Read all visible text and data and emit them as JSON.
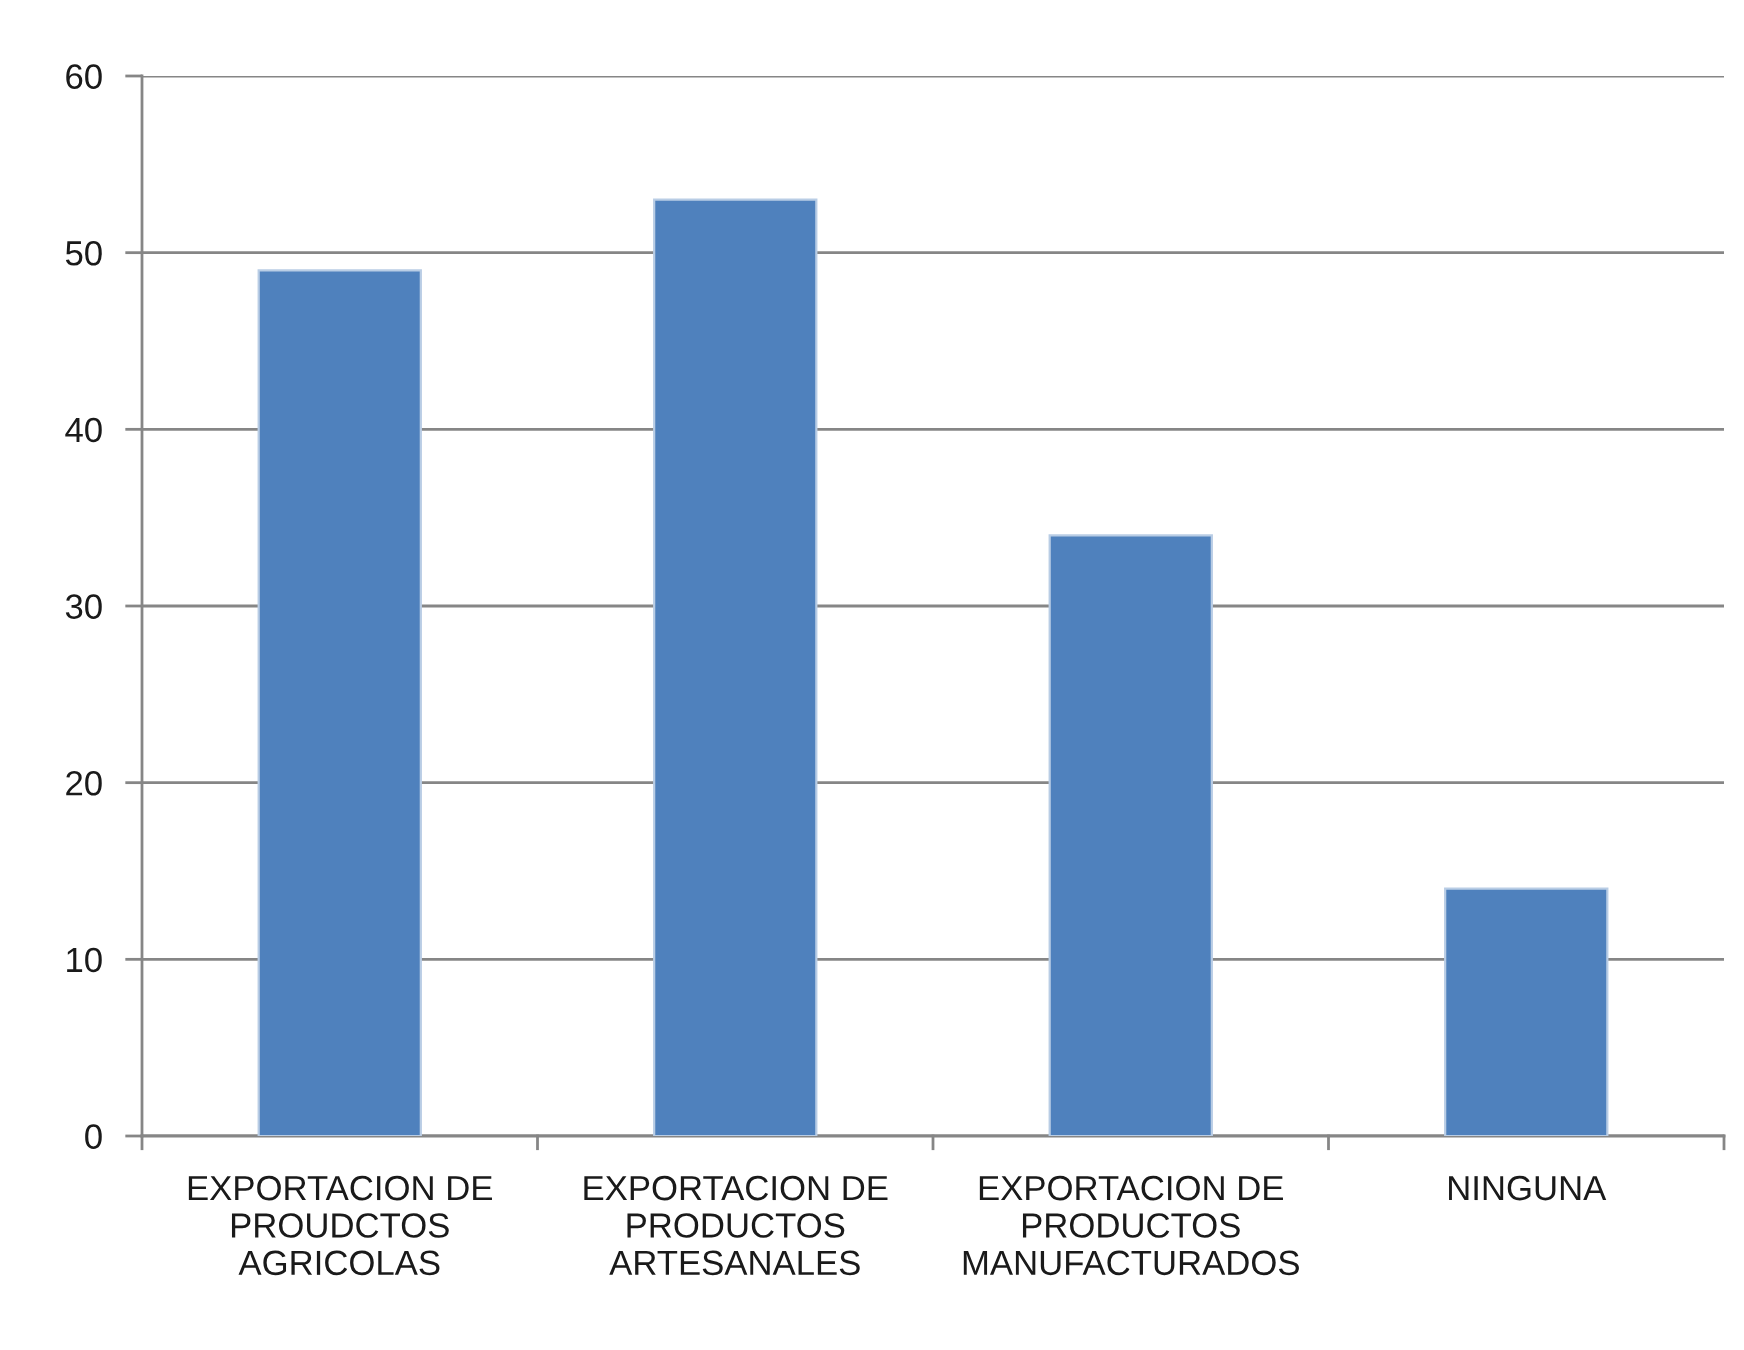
{
  "chart_data": {
    "type": "bar",
    "categories": [
      "EXPORTACION DE\nPROUDCTOS\nAGRICOLAS",
      "EXPORTACION DE\nPRODUCTOS\nARTESANALES",
      "EXPORTACION DE\nPRODUCTOS\nMANUFACTURADOS",
      "NINGUNA"
    ],
    "values": [
      49,
      53,
      34,
      14
    ],
    "color": "#4f81bd",
    "ylim": [
      0,
      60
    ],
    "yticks": [
      0,
      10,
      20,
      30,
      40,
      50,
      60
    ],
    "grid": "y",
    "legend": false
  }
}
